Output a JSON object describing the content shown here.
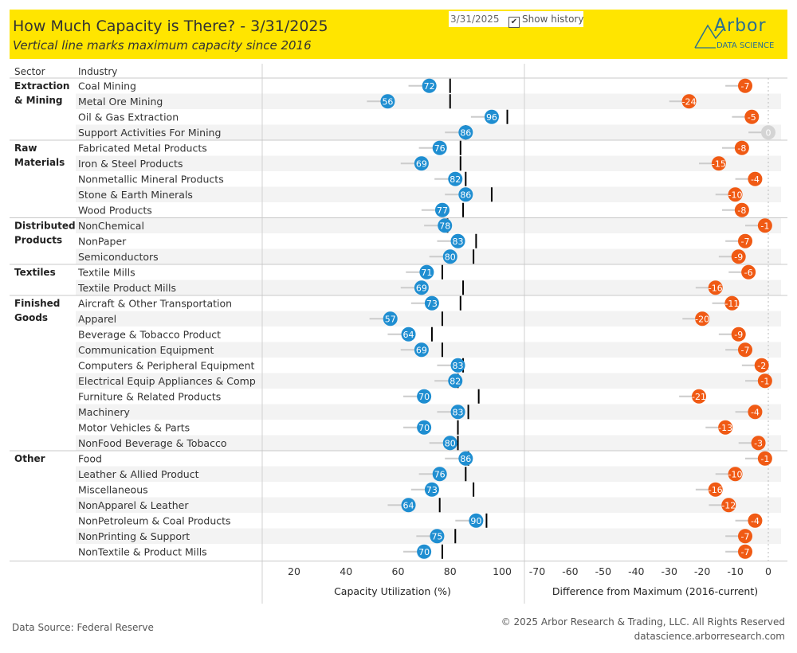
{
  "header": {
    "title": "How Much Capacity is There? - 3/31/2025",
    "subtitle": "Vertical line marks maximum capacity since 2016",
    "date_value": "3/31/2025",
    "show_history_label": "Show history",
    "show_history_checked": true,
    "logo_text": "Arbor",
    "logo_subtext": "DATA SCIENCE"
  },
  "footer": {
    "source": "Data Source: Federal Reserve",
    "copyright": "© 2025 Arbor Research & Trading, LLC. All Rights Reserved",
    "website": "datascience.arborresearch.com"
  },
  "chart_data": {
    "type": "scatter",
    "column_headers": {
      "sector": "Sector",
      "industry": "Industry"
    },
    "sectors": [
      {
        "name": "Extraction & Mining",
        "label_lines": [
          "Extraction",
          "& Mining"
        ],
        "industries": [
          {
            "name": "Coal Mining",
            "utilization": 72,
            "max": 80,
            "diff": -7
          },
          {
            "name": "Metal Ore Mining",
            "utilization": 56,
            "max": 80,
            "diff": -24
          },
          {
            "name": "Oil & Gas Extraction",
            "utilization": 96,
            "max": 102,
            "diff": -5
          },
          {
            "name": "Support Activities For Mining",
            "utilization": 86,
            "max": 86,
            "diff": 0
          }
        ]
      },
      {
        "name": "Raw Materials",
        "label_lines": [
          "Raw",
          "Materials"
        ],
        "industries": [
          {
            "name": "Fabricated Metal Products",
            "utilization": 76,
            "max": 84,
            "diff": -8
          },
          {
            "name": "Iron & Steel Products",
            "utilization": 69,
            "max": 84,
            "diff": -15
          },
          {
            "name": "Nonmetallic Mineral Products",
            "utilization": 82,
            "max": 86,
            "diff": -4
          },
          {
            "name": "Stone & Earth Minerals",
            "utilization": 86,
            "max": 96,
            "diff": -10
          },
          {
            "name": "Wood Products",
            "utilization": 77,
            "max": 85,
            "diff": -8
          }
        ]
      },
      {
        "name": "Distributed Products",
        "label_lines": [
          "Distributed",
          "Products"
        ],
        "industries": [
          {
            "name": "NonChemical",
            "utilization": 78,
            "max": 79,
            "diff": -1
          },
          {
            "name": "NonPaper",
            "utilization": 83,
            "max": 90,
            "diff": -7
          },
          {
            "name": "Semiconductors",
            "utilization": 80,
            "max": 89,
            "diff": -9
          }
        ]
      },
      {
        "name": "Textiles",
        "label_lines": [
          "Textiles"
        ],
        "industries": [
          {
            "name": "Textile Mills",
            "utilization": 71,
            "max": 77,
            "diff": -6
          },
          {
            "name": "Textile Product Mills",
            "utilization": 69,
            "max": 85,
            "diff": -16
          }
        ]
      },
      {
        "name": "Finished Goods",
        "label_lines": [
          "Finished",
          "Goods"
        ],
        "industries": [
          {
            "name": "Aircraft & Other Transportation",
            "utilization": 73,
            "max": 84,
            "diff": -11
          },
          {
            "name": "Apparel",
            "utilization": 57,
            "max": 77,
            "diff": -20
          },
          {
            "name": "Beverage & Tobacco Product",
            "utilization": 64,
            "max": 73,
            "diff": -9
          },
          {
            "name": "Communication Equipment",
            "utilization": 69,
            "max": 77,
            "diff": -7
          },
          {
            "name": "Computers & Peripheral Equipment",
            "utilization": 83,
            "max": 85,
            "diff": -2
          },
          {
            "name": "Electrical Equip Appliances & Comp",
            "utilization": 82,
            "max": 83,
            "diff": -1
          },
          {
            "name": "Furniture & Related Products",
            "utilization": 70,
            "max": 91,
            "diff": -21
          },
          {
            "name": "Machinery",
            "utilization": 83,
            "max": 87,
            "diff": -4
          },
          {
            "name": "Motor Vehicles & Parts",
            "utilization": 70,
            "max": 83,
            "diff": -13
          },
          {
            "name": "NonFood Beverage & Tobacco",
            "utilization": 80,
            "max": 83,
            "diff": -3
          }
        ]
      },
      {
        "name": "Other",
        "label_lines": [
          "Other"
        ],
        "industries": [
          {
            "name": "Food",
            "utilization": 86,
            "max": 87,
            "diff": -1
          },
          {
            "name": "Leather & Allied Product",
            "utilization": 76,
            "max": 86,
            "diff": -10
          },
          {
            "name": "Miscellaneous",
            "utilization": 73,
            "max": 89,
            "diff": -16
          },
          {
            "name": "NonApparel & Leather",
            "utilization": 64,
            "max": 76,
            "diff": -12
          },
          {
            "name": "NonPetroleum & Coal Products",
            "utilization": 90,
            "max": 94,
            "diff": -4
          },
          {
            "name": "NonPrinting & Support",
            "utilization": 75,
            "max": 82,
            "diff": -7
          },
          {
            "name": "NonTextile & Product Mills",
            "utilization": 70,
            "max": 77,
            "diff": -7
          }
        ]
      }
    ],
    "left_axis": {
      "label": "Capacity Utilization (%)",
      "range": [
        10,
        110
      ],
      "ticks": [
        20,
        40,
        60,
        80,
        100
      ]
    },
    "right_axis": {
      "label": "Difference from Maximum (2016-current)",
      "range": [
        -75,
        3
      ],
      "ticks": [
        -70,
        -60,
        -50,
        -40,
        -30,
        -20,
        -10,
        0
      ]
    },
    "colors": {
      "utilization": "#1f8ed1",
      "difference": "#f05a14",
      "zero": "#d4d4d4",
      "max_line": "#000000",
      "history": "#cccccc",
      "banding": "#f3f3f3"
    }
  }
}
